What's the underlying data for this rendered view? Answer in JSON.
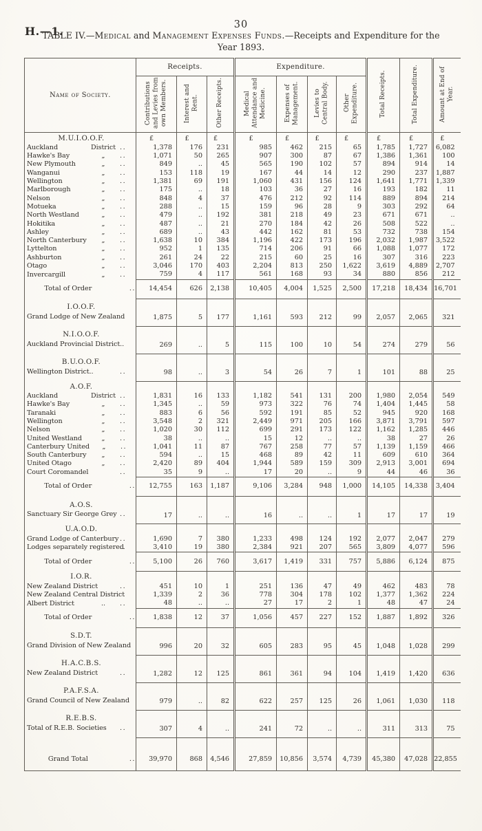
{
  "page": {
    "doc_ref": "H.—1.",
    "page_number": "30",
    "title_parts": [
      "TABLE IV.—",
      "Medical",
      " and ",
      "Management Expenses Funds.",
      "—Receipts and Expenditure for the"
    ],
    "title_line2": "Year 1893."
  },
  "table": {
    "name_header": "Name of Society.",
    "group_headers": {
      "receipts": "Receipts.",
      "expenditure": "Expenditure."
    },
    "col_headers": [
      "Contributions and Levies from own Members.",
      "Interest and Rent.",
      "Other Receipts.",
      "Medical Attendance and Medicine.",
      "Expenses of Management.",
      "Levies to Central Body.",
      "Other Expenditure.",
      "Total Receipts.",
      "Total Expenditure.",
      "Amount at End of Year."
    ],
    "currency_symbol": "£",
    "sections": [
      {
        "title": "M.U.I.O.O.F.",
        "currency_row": true,
        "rows": [
          {
            "name": "Auckland",
            "ditto": "District",
            "dots": "..",
            "values": [
              "1,378",
              "176",
              "231",
              "985",
              "462",
              "215",
              "65",
              "1,785",
              "1,727",
              "6,082"
            ]
          },
          {
            "name": "Hawke's Bay",
            "ditto": "„",
            "dots": "..",
            "values": [
              "1,071",
              "50",
              "265",
              "907",
              "300",
              "87",
              "67",
              "1,386",
              "1,361",
              "100"
            ]
          },
          {
            "name": "New Plymouth",
            "ditto": "„",
            "dots": "..",
            "values": [
              "849",
              "..",
              "45",
              "565",
              "190",
              "102",
              "57",
              "894",
              "914",
              "14"
            ]
          },
          {
            "name": "Wanganui",
            "ditto": "„",
            "dots": "..",
            "values": [
              "153",
              "118",
              "19",
              "167",
              "44",
              "14",
              "12",
              "290",
              "237",
              "1,887"
            ]
          },
          {
            "name": "Wellington",
            "ditto": "„",
            "dots": "..",
            "values": [
              "1,381",
              "69",
              "191",
              "1,060",
              "431",
              "156",
              "124",
              "1,641",
              "1,771",
              "1,339"
            ]
          },
          {
            "name": "Marlborough",
            "ditto": "„",
            "dots": "..",
            "values": [
              "175",
              "..",
              "18",
              "103",
              "36",
              "27",
              "16",
              "193",
              "182",
              "11"
            ]
          },
          {
            "name": "Nelson",
            "ditto": "„",
            "dots": "..",
            "values": [
              "848",
              "4",
              "37",
              "476",
              "212",
              "92",
              "114",
              "889",
              "894",
              "214"
            ]
          },
          {
            "name": "Motueka",
            "ditto": "„",
            "dots": "..",
            "values": [
              "288",
              "..",
              "15",
              "159",
              "96",
              "28",
              "9",
              "303",
              "292",
              "64"
            ]
          },
          {
            "name": "North Westland",
            "ditto": "„",
            "dots": "..",
            "values": [
              "479",
              "..",
              "192",
              "381",
              "218",
              "49",
              "23",
              "671",
              "671",
              ".."
            ]
          },
          {
            "name": "Hokitika",
            "ditto": "„",
            "dots": "..",
            "values": [
              "487",
              "..",
              "21",
              "270",
              "184",
              "42",
              "26",
              "508",
              "522",
              ".."
            ]
          },
          {
            "name": "Ashley",
            "ditto": "„",
            "dots": "..",
            "values": [
              "689",
              "..",
              "43",
              "442",
              "162",
              "81",
              "53",
              "732",
              "738",
              "154"
            ]
          },
          {
            "name": "North Canterbury",
            "ditto": "„",
            "dots": "..",
            "values": [
              "1,638",
              "10",
              "384",
              "1,196",
              "422",
              "173",
              "196",
              "2,032",
              "1,987",
              "3,522"
            ]
          },
          {
            "name": "Lyttelton",
            "ditto": "„",
            "dots": "..",
            "values": [
              "952",
              "1",
              "135",
              "714",
              "206",
              "91",
              "66",
              "1,088",
              "1,077",
              "172"
            ]
          },
          {
            "name": "Ashburton",
            "ditto": "„",
            "dots": "..",
            "values": [
              "261",
              "24",
              "22",
              "215",
              "60",
              "25",
              "16",
              "307",
              "316",
              "223"
            ]
          },
          {
            "name": "Otago",
            "ditto": "„",
            "dots": "..",
            "values": [
              "3,046",
              "170",
              "403",
              "2,204",
              "813",
              "250",
              "1,622",
              "3,619",
              "4,889",
              "2,707"
            ]
          },
          {
            "name": "Invercargill",
            "ditto": "„",
            "dots": "..",
            "values": [
              "759",
              "4",
              "117",
              "561",
              "168",
              "93",
              "34",
              "880",
              "856",
              "212"
            ]
          }
        ],
        "total": {
          "label": "Total of Order",
          "dots": "..",
          "values": [
            "14,454",
            "626",
            "2,138",
            "10,405",
            "4,004",
            "1,525",
            "2,500",
            "17,218",
            "18,434",
            "16,701"
          ]
        }
      },
      {
        "title": "I.O.O.F.",
        "rows": [
          {
            "name": "Grand Lodge of New Zealand",
            "values": [
              "1,875",
              "5",
              "177",
              "1,161",
              "593",
              "212",
              "99",
              "2,057",
              "2,065",
              "321"
            ]
          }
        ]
      },
      {
        "title": "N.I.O.O.F.",
        "rows": [
          {
            "name": "Auckland Provincial District..",
            "values": [
              "269",
              "..",
              "5",
              "115",
              "100",
              "10",
              "54",
              "274",
              "279",
              "56"
            ]
          }
        ]
      },
      {
        "title": "B.U.O.O.F.",
        "rows": [
          {
            "name": "Wellington District..",
            "dots": "..",
            "values": [
              "98",
              "..",
              "3",
              "54",
              "26",
              "7",
              "1",
              "101",
              "88",
              "25"
            ]
          }
        ]
      },
      {
        "title": "A.O.F.",
        "rows": [
          {
            "name": "Auckland",
            "ditto": "District",
            "dots": "..",
            "values": [
              "1,831",
              "16",
              "133",
              "1,182",
              "541",
              "131",
              "200",
              "1,980",
              "2,054",
              "549"
            ]
          },
          {
            "name": "Hawke's Bay",
            "ditto": "„",
            "dots": "..",
            "values": [
              "1,345",
              "..",
              "59",
              "973",
              "322",
              "76",
              "74",
              "1,404",
              "1,445",
              "58"
            ]
          },
          {
            "name": "Taranaki",
            "ditto": "„",
            "dots": "..",
            "values": [
              "883",
              "6",
              "56",
              "592",
              "191",
              "85",
              "52",
              "945",
              "920",
              "168"
            ]
          },
          {
            "name": "Wellington",
            "ditto": "„",
            "dots": "..",
            "values": [
              "3,548",
              "2",
              "321",
              "2,449",
              "971",
              "205",
              "166",
              "3,871",
              "3,791",
              "597"
            ]
          },
          {
            "name": "Nelson",
            "ditto": "„",
            "dots": "..",
            "values": [
              "1,020",
              "30",
              "112",
              "699",
              "291",
              "173",
              "122",
              "1,162",
              "1,285",
              "446"
            ]
          },
          {
            "name": "United Westland",
            "ditto": "„",
            "dots": "..",
            "values": [
              "38",
              "..",
              "..",
              "15",
              "12",
              "..",
              "..",
              "38",
              "27",
              "26"
            ]
          },
          {
            "name": "Canterbury United",
            "ditto": "„",
            "dots": "..",
            "values": [
              "1,041",
              "11",
              "87",
              "767",
              "258",
              "77",
              "57",
              "1,139",
              "1,159",
              "466"
            ]
          },
          {
            "name": "South Canterbury",
            "ditto": "„",
            "dots": "..",
            "values": [
              "594",
              "..",
              "15",
              "468",
              "89",
              "42",
              "11",
              "609",
              "610",
              "364"
            ]
          },
          {
            "name": "United Otago",
            "ditto": "„",
            "dots": "..",
            "values": [
              "2,420",
              "89",
              "404",
              "1,944",
              "589",
              "159",
              "309",
              "2,913",
              "3,001",
              "694"
            ]
          },
          {
            "name": "Court Coromandel",
            "dots": "..",
            "values": [
              "35",
              "9",
              "..",
              "17",
              "20",
              "..",
              "9",
              "44",
              "46",
              "36"
            ]
          }
        ],
        "total": {
          "label": "Total of Order",
          "dots": "..",
          "values": [
            "12,755",
            "163",
            "1,187",
            "9,106",
            "3,284",
            "948",
            "1,000",
            "14,105",
            "14,338",
            "3,404"
          ]
        }
      },
      {
        "title": "A.O.S.",
        "rows": [
          {
            "name": "Sanctuary Sir George Grey",
            "dots": "..",
            "values": [
              "17",
              "..",
              "..",
              "16",
              "..",
              "..",
              "1",
              "17",
              "17",
              "19"
            ]
          }
        ]
      },
      {
        "title": "U.A.O.D.",
        "rows": [
          {
            "name": "Grand Lodge of Canterbury",
            "dots": "..",
            "values": [
              "1,690",
              "7",
              "380",
              "1,233",
              "498",
              "124",
              "192",
              "2,077",
              "2,047",
              "279"
            ]
          },
          {
            "name": "Lodges separately registered",
            "dots": "..",
            "values": [
              "3,410",
              "19",
              "380",
              "2,384",
              "921",
              "207",
              "565",
              "3,809",
              "4,077",
              "596"
            ]
          }
        ],
        "total": {
          "label": "Total of Order",
          "dots": "..",
          "values": [
            "5,100",
            "26",
            "760",
            "3,617",
            "1,419",
            "331",
            "757",
            "5,886",
            "6,124",
            "875"
          ]
        }
      },
      {
        "title": "I.O.R.",
        "rows": [
          {
            "name": "New Zealand District",
            "dots": "..",
            "values": [
              "451",
              "10",
              "1",
              "251",
              "136",
              "47",
              "49",
              "462",
              "483",
              "78"
            ]
          },
          {
            "name": "New Zealand Central District",
            "values": [
              "1,339",
              "2",
              "36",
              "778",
              "304",
              "178",
              "102",
              "1,377",
              "1,362",
              "224"
            ]
          },
          {
            "name": "Albert District",
            "ditto": "..",
            "dots": "..",
            "values": [
              "48",
              "..",
              "..",
              "27",
              "17",
              "2",
              "1",
              "48",
              "47",
              "24"
            ]
          }
        ],
        "total": {
          "label": "Total of Order",
          "dots": "..",
          "values": [
            "1,838",
            "12",
            "37",
            "1,056",
            "457",
            "227",
            "152",
            "1,887",
            "1,892",
            "326"
          ]
        }
      },
      {
        "title": "S.D.T.",
        "rows": [
          {
            "name": "Grand Division of New Zealand",
            "values": [
              "996",
              "20",
              "32",
              "605",
              "283",
              "95",
              "45",
              "1,048",
              "1,028",
              "299"
            ]
          }
        ]
      },
      {
        "title": "H.A.C.B.S.",
        "rows": [
          {
            "name": "New Zealand District",
            "dots": "..",
            "values": [
              "1,282",
              "12",
              "125",
              "861",
              "361",
              "94",
              "104",
              "1,419",
              "1,420",
              "636"
            ]
          }
        ]
      },
      {
        "title": "P.A.F.S.A.",
        "rows": [
          {
            "name": "Grand Council of New Zealand",
            "values": [
              "979",
              "..",
              "82",
              "622",
              "257",
              "125",
              "26",
              "1,061",
              "1,030",
              "118"
            ]
          }
        ]
      },
      {
        "title": "R.E.B.S.",
        "rows": [
          {
            "name": "Total of R.E.B. Societies",
            "dots": "..",
            "values": [
              "307",
              "4",
              "..",
              "241",
              "72",
              "..",
              "..",
              "311",
              "313",
              "75"
            ]
          }
        ]
      }
    ],
    "grand_total": {
      "label": "Grand Total",
      "dots": "..",
      "values": [
        "39,970",
        "868",
        "4,546",
        "27,859",
        "10,856",
        "3,574",
        "4,739",
        "45,380",
        "47,028",
        "22,855"
      ]
    }
  }
}
